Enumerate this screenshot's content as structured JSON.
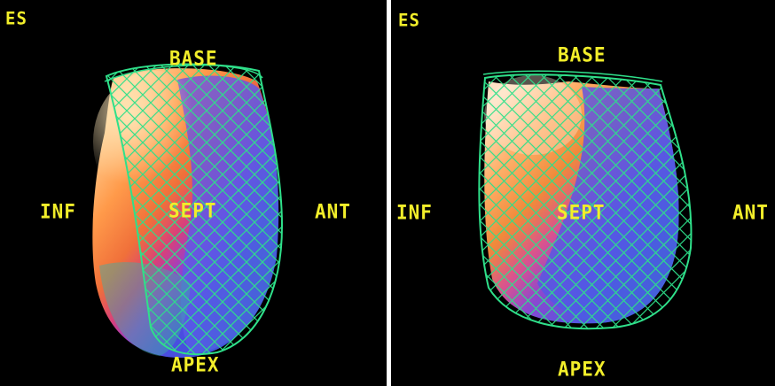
{
  "colors": {
    "label": "#f2ee2a",
    "mesh": "#2fe08a",
    "background": "#000000",
    "divider": "#ffffff"
  },
  "panels": [
    {
      "id": "left",
      "phase_label": "ES",
      "labels": {
        "base": "BASE",
        "apex": "APEX",
        "inferior": "INF",
        "anterior": "ANT",
        "septal": "SEPT"
      }
    },
    {
      "id": "right",
      "phase_label": "ES",
      "labels": {
        "base": "BASE",
        "apex": "APEX",
        "inferior": "INF",
        "anterior": "ANT",
        "septal": "SEPT"
      }
    }
  ]
}
